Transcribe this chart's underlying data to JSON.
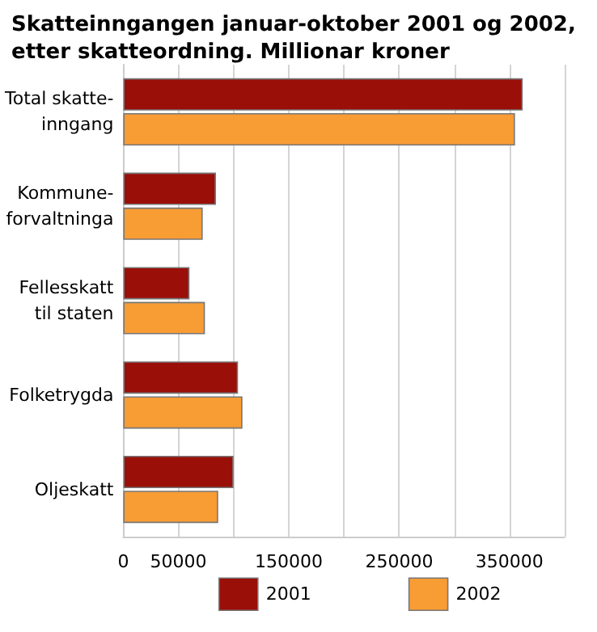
{
  "chart_data": {
    "type": "bar",
    "orientation": "horizontal",
    "title": "Skatteinngangen januar-oktober 2001 og 2002, etter skatteordning. Millionar kroner",
    "categories": [
      "Total skatte-\ninngang",
      "Kommune-\nforvaltninga",
      "Fellesskatt\ntil staten",
      "Folketrygda",
      "Oljeskatt"
    ],
    "series": [
      {
        "name": "2001",
        "color": "#9a0f08",
        "values": [
          362000,
          84000,
          60000,
          104000,
          100000
        ]
      },
      {
        "name": "2002",
        "color": "#f89c34",
        "values": [
          355000,
          72000,
          74000,
          108000,
          86000
        ]
      }
    ],
    "xlim": [
      0,
      400000
    ],
    "xticks": [
      0,
      50000,
      {
        "value": 100000,
        "label": null
      },
      150000,
      {
        "value": 200000,
        "label": null
      },
      250000,
      {
        "value": 300000,
        "label": null
      },
      350000,
      {
        "value": 400000,
        "label": null
      }
    ],
    "grid": "x",
    "legend": "bottom"
  }
}
